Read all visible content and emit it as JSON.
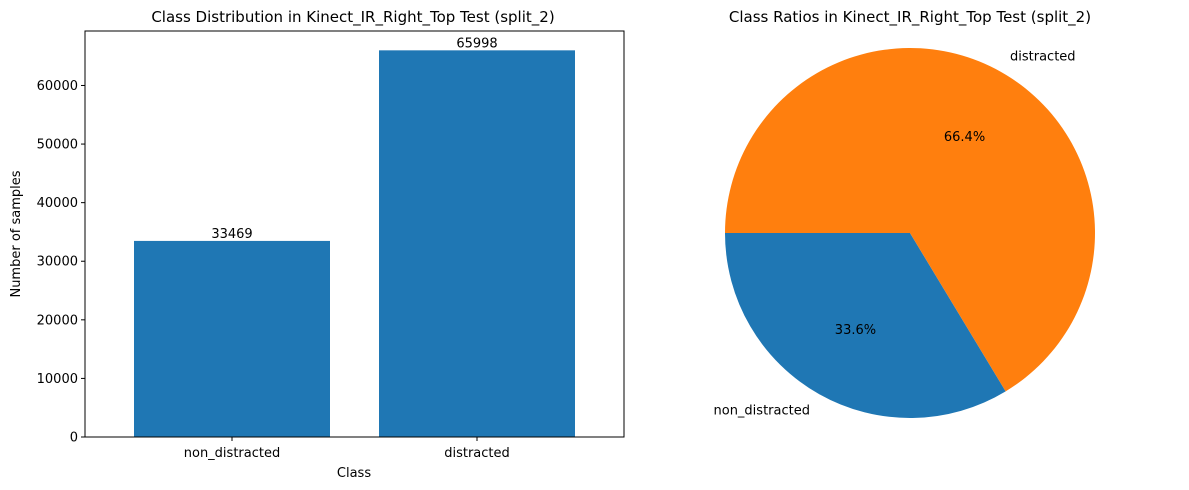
{
  "colors": {
    "blue": "#1f77b4",
    "orange": "#ff7f0e"
  },
  "chart_data": [
    {
      "type": "bar",
      "title": "Class Distribution in Kinect_IR_Right_Top Test (split_2)",
      "xlabel": "Class",
      "ylabel": "Number of samples",
      "categories": [
        "non_distracted",
        "distracted"
      ],
      "values": [
        33469,
        65998
      ],
      "data_labels": [
        "33469",
        "65998"
      ],
      "ylim": [
        0,
        69298
      ],
      "yticks": [
        0,
        10000,
        20000,
        30000,
        40000,
        50000,
        60000
      ],
      "ytick_labels": [
        "0",
        "10000",
        "20000",
        "30000",
        "40000",
        "50000",
        "60000"
      ],
      "grid": false,
      "color": "#1f77b4"
    },
    {
      "type": "pie",
      "title": "Class Ratios in Kinect_IR_Right_Top Test (split_2)",
      "labels": [
        "non_distracted",
        "distracted"
      ],
      "values": [
        33469,
        65998
      ],
      "percent_labels": [
        "33.6%",
        "66.4%"
      ],
      "colors": [
        "#1f77b4",
        "#ff7f0e"
      ]
    }
  ]
}
